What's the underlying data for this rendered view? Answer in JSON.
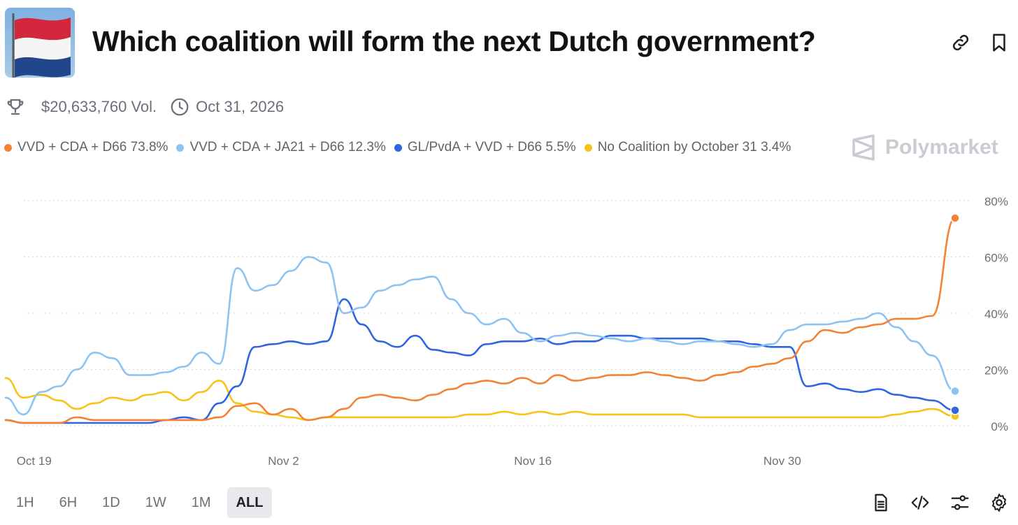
{
  "header": {
    "title": "Which coalition will form the next Dutch government?"
  },
  "meta": {
    "volume": "$20,633,760 Vol.",
    "end_date": "Oct 31, 2026"
  },
  "brand": {
    "name": "Polymarket"
  },
  "colors": {
    "orange": "#f58233",
    "lightblue": "#8cc3f2",
    "blue": "#2f66e0",
    "yellow": "#f7c318"
  },
  "time_ranges": [
    "1H",
    "6H",
    "1D",
    "1W",
    "1M",
    "ALL"
  ],
  "active_range": "ALL",
  "chart_data": {
    "type": "line",
    "title": "",
    "xlabel": "",
    "ylabel": "",
    "ylim": [
      0,
      85
    ],
    "yticks": [
      "0%",
      "20%",
      "40%",
      "60%",
      "80%"
    ],
    "x_start_days": -1.6,
    "x_end_days": 51.7,
    "xticks": [
      {
        "label": "Oct 19",
        "day": 0
      },
      {
        "label": "Nov 2",
        "day": 14
      },
      {
        "label": "Nov 16",
        "day": 28
      },
      {
        "label": "Nov 30",
        "day": 42
      }
    ],
    "series": [
      {
        "name": "VVD + CDA + D66",
        "legend": "VVD + CDA + D66 73.8%",
        "color": "#f58233",
        "x": [
          -1.6,
          -0.6,
          0.4,
          1.4,
          2.4,
          3.4,
          4.4,
          5.4,
          6.4,
          7.4,
          8.4,
          9.4,
          10.4,
          11.4,
          12.4,
          13.4,
          14.4,
          15.4,
          16.4,
          17.4,
          18.4,
          19.4,
          20.4,
          21.4,
          22.4,
          23.4,
          24.4,
          25.4,
          26.4,
          27.4,
          28.4,
          29.4,
          30.4,
          31.4,
          32.4,
          33.4,
          34.4,
          35.4,
          36.4,
          37.4,
          38.4,
          39.4,
          40.4,
          41.4,
          42.4,
          43.4,
          44.4,
          45.4,
          46.4,
          47.4,
          48.4,
          49.4,
          50.4,
          51.7
        ],
        "y": [
          2,
          1,
          1,
          1,
          3,
          2,
          2,
          2,
          2,
          2,
          2,
          2,
          3,
          7,
          8,
          4,
          6,
          2,
          3,
          6,
          10,
          11,
          10,
          9,
          11,
          13,
          15,
          16,
          15,
          17,
          15,
          18,
          16,
          17,
          18,
          18,
          19,
          18,
          17,
          16,
          18,
          19,
          21,
          22,
          24,
          30,
          34,
          33,
          35,
          36,
          38,
          38,
          39,
          73.8
        ]
      },
      {
        "name": "VVD + CDA + JA21 + D66",
        "legend": "VVD + CDA + JA21 + D66 12.3%",
        "color": "#8cc3f2",
        "x": [
          -1.6,
          -0.6,
          0.4,
          1.4,
          2.4,
          3.4,
          4.4,
          5.4,
          6.4,
          7.4,
          8.4,
          9.4,
          10.4,
          11.4,
          12.4,
          13.4,
          14.4,
          15.4,
          16.4,
          17.4,
          18.4,
          19.4,
          20.4,
          21.4,
          22.4,
          23.4,
          24.4,
          25.4,
          26.4,
          27.4,
          28.4,
          29.4,
          30.4,
          31.4,
          32.4,
          33.4,
          34.4,
          35.4,
          36.4,
          37.4,
          38.4,
          39.4,
          40.4,
          41.4,
          42.4,
          43.4,
          44.4,
          45.4,
          46.4,
          47.4,
          48.4,
          49.4,
          50.4,
          51.7
        ],
        "y": [
          10,
          4,
          12,
          14,
          20,
          26,
          24,
          18,
          18,
          19,
          21,
          26,
          22,
          56,
          48,
          50,
          55,
          60,
          58,
          40,
          42,
          48,
          50,
          52,
          53,
          45,
          40,
          36,
          38,
          33,
          30,
          32,
          33,
          32,
          31,
          30,
          31,
          30,
          29,
          30,
          30,
          29,
          28,
          29,
          34,
          36,
          36,
          37,
          38,
          40,
          35,
          30,
          25,
          12.3
        ]
      },
      {
        "name": "GL/PvdA + VVD + D66",
        "legend": "GL/PvdA + VVD + D66 5.5%",
        "color": "#2f66e0",
        "x": [
          -1.6,
          -0.6,
          0.4,
          1.4,
          2.4,
          3.4,
          4.4,
          5.4,
          6.4,
          7.4,
          8.4,
          9.4,
          10.4,
          11.4,
          12.4,
          13.4,
          14.4,
          15.4,
          16.4,
          17.4,
          18.4,
          19.4,
          20.4,
          21.4,
          22.4,
          23.4,
          24.4,
          25.4,
          26.4,
          27.4,
          28.4,
          29.4,
          30.4,
          31.4,
          32.4,
          33.4,
          34.4,
          35.4,
          36.4,
          37.4,
          38.4,
          39.4,
          40.4,
          41.4,
          42.4,
          43.4,
          44.4,
          45.4,
          46.4,
          47.4,
          48.4,
          49.4,
          50.4,
          51.7
        ],
        "y": [
          2,
          1,
          1,
          1,
          1,
          1,
          1,
          1,
          1,
          2,
          3,
          2,
          8,
          14,
          28,
          29,
          30,
          29,
          30,
          45,
          36,
          30,
          28,
          32,
          27,
          26,
          25,
          29,
          30,
          30,
          31,
          29,
          30,
          30,
          32,
          32,
          31,
          31,
          31,
          31,
          30,
          30,
          29,
          28,
          28,
          14,
          15,
          13,
          12,
          13,
          11,
          10,
          9,
          5.5
        ]
      },
      {
        "name": "No Coalition by October 31",
        "legend": "No Coalition by October 31 3.4%",
        "color": "#f7c318",
        "x": [
          -1.6,
          -0.6,
          0.4,
          1.4,
          2.4,
          3.4,
          4.4,
          5.4,
          6.4,
          7.4,
          8.4,
          9.4,
          10.4,
          11.4,
          12.4,
          13.4,
          14.4,
          15.4,
          16.4,
          17.4,
          18.4,
          19.4,
          20.4,
          21.4,
          22.4,
          23.4,
          24.4,
          25.4,
          26.4,
          27.4,
          28.4,
          29.4,
          30.4,
          31.4,
          32.4,
          33.4,
          34.4,
          35.4,
          36.4,
          37.4,
          38.4,
          39.4,
          40.4,
          41.4,
          42.4,
          43.4,
          44.4,
          45.4,
          46.4,
          47.4,
          48.4,
          49.4,
          50.4,
          51.7
        ],
        "y": [
          17,
          10,
          11,
          9,
          6,
          8,
          10,
          9,
          11,
          12,
          9,
          12,
          16,
          8,
          5,
          4,
          3,
          2,
          3,
          3,
          3,
          3,
          3,
          3,
          3,
          3,
          4,
          4,
          5,
          4,
          5,
          4,
          5,
          4,
          4,
          4,
          4,
          4,
          4,
          3,
          3,
          3,
          3,
          3,
          3,
          3,
          3,
          3,
          3,
          3,
          4,
          5,
          6,
          3.4
        ]
      }
    ]
  }
}
